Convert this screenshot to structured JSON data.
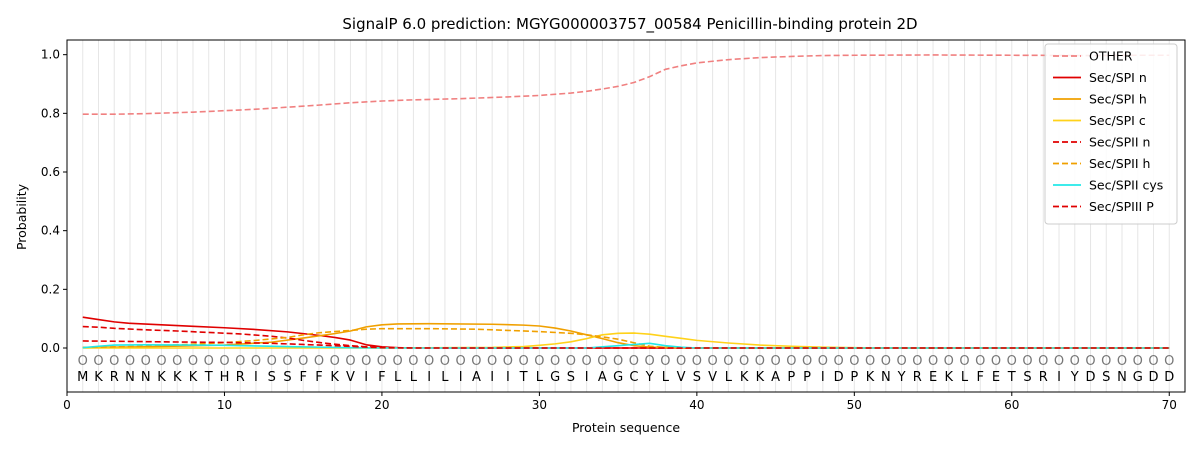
{
  "chart_data": {
    "type": "line",
    "title": "SignalP 6.0 prediction: MGYG000003757_00584 Penicillin-binding protein 2D",
    "xlabel": "Protein sequence",
    "ylabel": "Probability",
    "xlim": [
      0,
      71
    ],
    "ylim": [
      -0.15,
      1.05
    ],
    "xticks": [
      "0",
      "10",
      "20",
      "30",
      "40",
      "50",
      "60",
      "70"
    ],
    "yticks": [
      "0.0",
      "0.2",
      "0.4",
      "0.6",
      "0.8",
      "1.0"
    ],
    "legend_position": "top-right",
    "grid": "vertical lines at every residue",
    "sequence": [
      "M",
      "K",
      "R",
      "N",
      "N",
      "K",
      "K",
      "K",
      "T",
      "H",
      "R",
      "I",
      "S",
      "S",
      "F",
      "F",
      "K",
      "V",
      "I",
      "F",
      "L",
      "L",
      "I",
      "L",
      "I",
      "A",
      "I",
      "I",
      "T",
      "L",
      "G",
      "S",
      "I",
      "A",
      "G",
      "C",
      "Y",
      "L",
      "V",
      "S",
      "V",
      "L",
      "K",
      "K",
      "A",
      "P",
      "P",
      "I",
      "D",
      "P",
      "K",
      "N",
      "Y",
      "R",
      "E",
      "K",
      "L",
      "F",
      "E",
      "T",
      "S",
      "R",
      "I",
      "Y",
      "D",
      "S",
      "N",
      "G",
      "D",
      "D"
    ],
    "region_labels": [
      "O",
      "O",
      "O",
      "O",
      "O",
      "O",
      "O",
      "O",
      "O",
      "O",
      "O",
      "O",
      "O",
      "O",
      "O",
      "O",
      "O",
      "O",
      "O",
      "O",
      "O",
      "O",
      "O",
      "O",
      "O",
      "O",
      "O",
      "O",
      "O",
      "O",
      "O",
      "O",
      "O",
      "O",
      "O",
      "O",
      "O",
      "O",
      "O",
      "O",
      "O",
      "O",
      "O",
      "O",
      "O",
      "O",
      "O",
      "O",
      "O",
      "O",
      "O",
      "O",
      "O",
      "O",
      "O",
      "O",
      "O",
      "O",
      "O",
      "O",
      "O",
      "O",
      "O",
      "O",
      "O",
      "O",
      "O",
      "O",
      "O",
      "O"
    ],
    "series": [
      {
        "name": "OTHER",
        "color": "#f08080",
        "dash": true,
        "points": [
          [
            1,
            0.797
          ],
          [
            3,
            0.797
          ],
          [
            5,
            0.799
          ],
          [
            8,
            0.804
          ],
          [
            10,
            0.809
          ],
          [
            12,
            0.814
          ],
          [
            14,
            0.821
          ],
          [
            16,
            0.828
          ],
          [
            18,
            0.836
          ],
          [
            20,
            0.842
          ],
          [
            22,
            0.846
          ],
          [
            25,
            0.85
          ],
          [
            28,
            0.856
          ],
          [
            30,
            0.861
          ],
          [
            32,
            0.869
          ],
          [
            33,
            0.875
          ],
          [
            34,
            0.883
          ],
          [
            35,
            0.892
          ],
          [
            36,
            0.905
          ],
          [
            37,
            0.925
          ],
          [
            38,
            0.95
          ],
          [
            39,
            0.962
          ],
          [
            40,
            0.972
          ],
          [
            42,
            0.983
          ],
          [
            44,
            0.99
          ],
          [
            46,
            0.994
          ],
          [
            48,
            0.997
          ],
          [
            50,
            0.998
          ],
          [
            55,
            0.999
          ],
          [
            60,
            0.998
          ],
          [
            65,
            0.997
          ],
          [
            68,
            0.998
          ],
          [
            70,
            0.998
          ]
        ]
      },
      {
        "name": "Sec/SPI n",
        "color": "#e00000",
        "dash": false,
        "points": [
          [
            1,
            0.105
          ],
          [
            2,
            0.097
          ],
          [
            3,
            0.089
          ],
          [
            4,
            0.084
          ],
          [
            6,
            0.079
          ],
          [
            8,
            0.074
          ],
          [
            10,
            0.069
          ],
          [
            12,
            0.063
          ],
          [
            14,
            0.055
          ],
          [
            16,
            0.043
          ],
          [
            17,
            0.036
          ],
          [
            18,
            0.027
          ],
          [
            19,
            0.011
          ],
          [
            20,
            0.004
          ],
          [
            21,
            0.001
          ],
          [
            25,
            0
          ],
          [
            70,
            0
          ]
        ]
      },
      {
        "name": "Sec/SPI h",
        "color": "#f0a000",
        "dash": false,
        "points": [
          [
            1,
            0.002
          ],
          [
            5,
            0.004
          ],
          [
            10,
            0.01
          ],
          [
            13,
            0.02
          ],
          [
            15,
            0.034
          ],
          [
            17,
            0.049
          ],
          [
            18,
            0.058
          ],
          [
            19,
            0.072
          ],
          [
            20,
            0.079
          ],
          [
            21,
            0.082
          ],
          [
            23,
            0.083
          ],
          [
            27,
            0.081
          ],
          [
            29,
            0.078
          ],
          [
            30,
            0.075
          ],
          [
            31,
            0.068
          ],
          [
            32,
            0.058
          ],
          [
            33,
            0.045
          ],
          [
            34,
            0.032
          ],
          [
            35,
            0.018
          ],
          [
            36,
            0.008
          ],
          [
            37,
            0.003
          ],
          [
            39,
            0.001
          ],
          [
            40,
            0
          ],
          [
            70,
            0
          ]
        ]
      },
      {
        "name": "Sec/SPI c",
        "color": "#ffd21a",
        "dash": false,
        "points": [
          [
            1,
            0
          ],
          [
            20,
            0
          ],
          [
            27,
            0.002
          ],
          [
            29,
            0.005
          ],
          [
            30,
            0.009
          ],
          [
            31,
            0.014
          ],
          [
            32,
            0.021
          ],
          [
            33,
            0.032
          ],
          [
            34,
            0.045
          ],
          [
            35,
            0.05
          ],
          [
            36,
            0.051
          ],
          [
            37,
            0.047
          ],
          [
            38,
            0.04
          ],
          [
            39,
            0.033
          ],
          [
            40,
            0.026
          ],
          [
            42,
            0.017
          ],
          [
            44,
            0.01
          ],
          [
            46,
            0.006
          ],
          [
            48,
            0.003
          ],
          [
            50,
            0.001
          ],
          [
            52,
            0
          ],
          [
            70,
            0
          ]
        ]
      },
      {
        "name": "Sec/SPII n",
        "color": "#e00000",
        "dash": true,
        "points": [
          [
            1,
            0.073
          ],
          [
            2,
            0.071
          ],
          [
            3,
            0.067
          ],
          [
            5,
            0.062
          ],
          [
            7,
            0.058
          ],
          [
            9,
            0.053
          ],
          [
            11,
            0.048
          ],
          [
            13,
            0.04
          ],
          [
            14,
            0.034
          ],
          [
            15,
            0.026
          ],
          [
            16,
            0.019
          ],
          [
            17,
            0.013
          ],
          [
            18,
            0.008
          ],
          [
            19,
            0.004
          ],
          [
            20,
            0.002
          ],
          [
            22,
            0
          ],
          [
            70,
            0
          ]
        ]
      },
      {
        "name": "Sec/SPII h",
        "color": "#f0a000",
        "dash": true,
        "points": [
          [
            1,
            0.002
          ],
          [
            5,
            0.006
          ],
          [
            10,
            0.018
          ],
          [
            12,
            0.026
          ],
          [
            14,
            0.036
          ],
          [
            15,
            0.045
          ],
          [
            16,
            0.052
          ],
          [
            17,
            0.056
          ],
          [
            18,
            0.06
          ],
          [
            19,
            0.064
          ],
          [
            20,
            0.066
          ],
          [
            23,
            0.066
          ],
          [
            26,
            0.064
          ],
          [
            28,
            0.06
          ],
          [
            30,
            0.056
          ],
          [
            32,
            0.05
          ],
          [
            33,
            0.045
          ],
          [
            34,
            0.038
          ],
          [
            35,
            0.03
          ],
          [
            36,
            0.018
          ],
          [
            37,
            0.006
          ],
          [
            38,
            0.002
          ],
          [
            40,
            0
          ],
          [
            70,
            0
          ]
        ]
      },
      {
        "name": "Sec/SPII cys",
        "color": "#22e8e8",
        "dash": false,
        "points": [
          [
            1,
            0.001
          ],
          [
            2,
            0.006
          ],
          [
            3,
            0.01
          ],
          [
            5,
            0.011
          ],
          [
            8,
            0.01
          ],
          [
            10,
            0.009
          ],
          [
            12,
            0.007
          ],
          [
            14,
            0.005
          ],
          [
            16,
            0.003
          ],
          [
            18,
            0.001
          ],
          [
            20,
            0
          ],
          [
            33,
            0
          ],
          [
            34,
            0.004
          ],
          [
            35,
            0.008
          ],
          [
            36,
            0.012
          ],
          [
            37,
            0.016
          ],
          [
            38,
            0.008
          ],
          [
            39,
            0.003
          ],
          [
            40,
            0
          ],
          [
            70,
            0
          ]
        ]
      },
      {
        "name": "Sec/SPIII P",
        "color": "#e00000",
        "dash": true,
        "points": [
          [
            1,
            0.024
          ],
          [
            3,
            0.023
          ],
          [
            6,
            0.021
          ],
          [
            10,
            0.019
          ],
          [
            13,
            0.016
          ],
          [
            15,
            0.012
          ],
          [
            17,
            0.008
          ],
          [
            19,
            0.003
          ],
          [
            20,
            0.001
          ],
          [
            22,
            0
          ],
          [
            70,
            0
          ]
        ]
      }
    ]
  }
}
